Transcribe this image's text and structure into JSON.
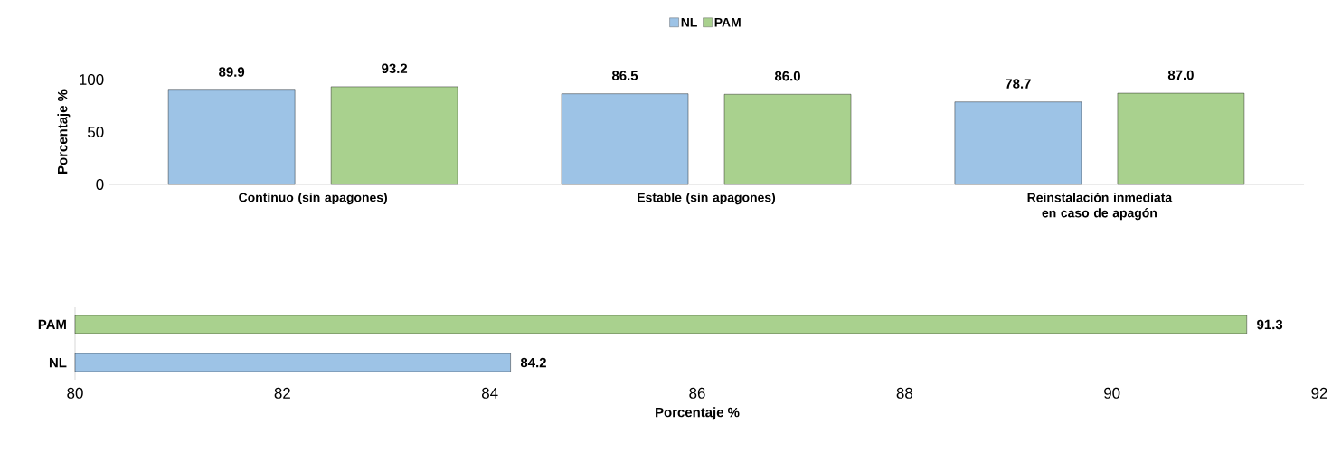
{
  "chart_data": [
    {
      "type": "bar",
      "categories": [
        "Continuo (sin apagones)",
        "Estable (sin apagones)",
        "Reinstalación inmediata en caso de apagón"
      ],
      "series": [
        {
          "name": "NL",
          "color": "#9dc3e6",
          "values": [
            89.9,
            86.5,
            78.7
          ],
          "value_labels": [
            "89.9",
            "86.5",
            "78.7"
          ]
        },
        {
          "name": "PAM",
          "color": "#a9d18e",
          "values": [
            93.2,
            86.0,
            87.0
          ],
          "value_labels": [
            "93.2",
            "86.0",
            "87.0"
          ]
        }
      ],
      "ylabel": "Porcentaje %",
      "ylim": [
        0,
        100
      ],
      "yticks": [
        0,
        50,
        100
      ],
      "legend": "top"
    },
    {
      "type": "bar",
      "orientation": "horizontal",
      "categories": [
        "PAM",
        "NL"
      ],
      "values": [
        91.3,
        84.2
      ],
      "value_labels": [
        "91.3",
        "84.2"
      ],
      "colors": [
        "#a9d18e",
        "#9dc3e6"
      ],
      "xlabel": "Porcentaje %",
      "xlim": [
        80,
        92
      ],
      "xticks": [
        80,
        82,
        84,
        86,
        88,
        90,
        92
      ]
    }
  ]
}
